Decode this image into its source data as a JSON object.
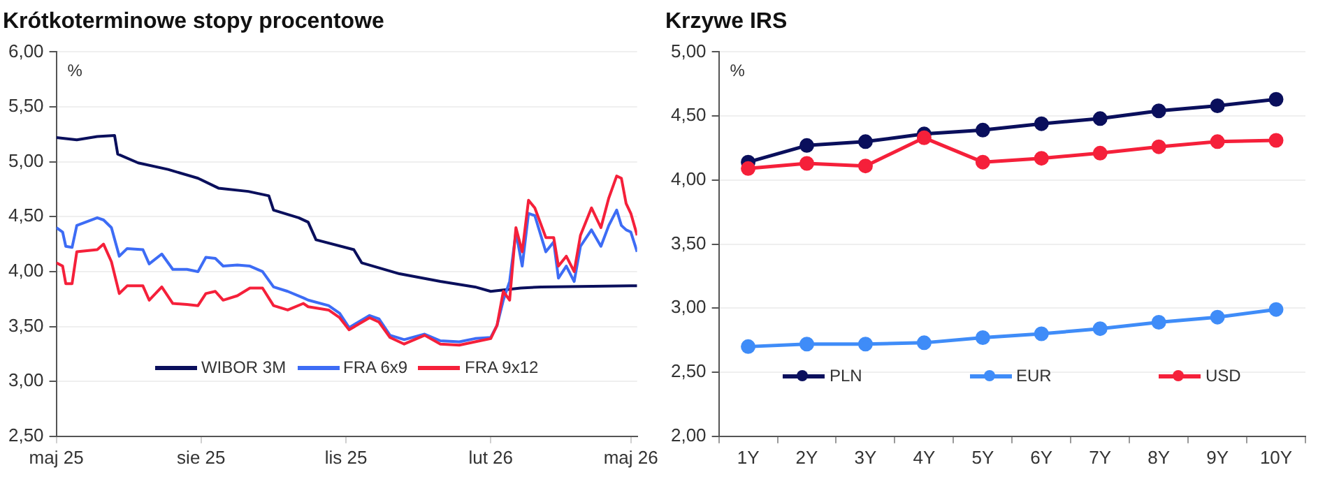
{
  "chart_data": [
    {
      "type": "line",
      "title": "Krótkoterminowe stopy procentowe",
      "ylabel": "%",
      "legend": "bottom",
      "grid": "y",
      "marker": "none",
      "xlim": [
        "2025-05-01",
        "2026-05-05"
      ],
      "xticks": [
        {
          "value": "2025-05-01",
          "label": "maj 25"
        },
        {
          "value": "2025-08-01",
          "label": "sie 25"
        },
        {
          "value": "2025-11-01",
          "label": "lis 25"
        },
        {
          "value": "2026-02-01",
          "label": "lut 26"
        },
        {
          "value": "2026-05-01",
          "label": "maj 26"
        }
      ],
      "ylim": [
        2.5,
        6
      ],
      "yticks": [
        {
          "value": 2.5,
          "label": "2,50"
        },
        {
          "value": 3,
          "label": "3,00"
        },
        {
          "value": 3.5,
          "label": "3,50"
        },
        {
          "value": 4,
          "label": "4,00"
        },
        {
          "value": 4.5,
          "label": "4,50"
        },
        {
          "value": 5,
          "label": "5,00"
        },
        {
          "value": 5.5,
          "label": "5,50"
        },
        {
          "value": 6,
          "label": "6,00"
        }
      ],
      "series": [
        {
          "name": "WIBOR 3M",
          "color": "#0a0f5c",
          "x": [
            "2025-05-01",
            "2025-05-14",
            "2025-05-27",
            "2025-06-07",
            "2025-06-09",
            "2025-06-22",
            "2025-07-11",
            "2025-07-30",
            "2025-08-12",
            "2025-08-31",
            "2025-09-13",
            "2025-09-16",
            "2025-10-02",
            "2025-10-08",
            "2025-10-13",
            "2025-11-06",
            "2025-11-11",
            "2025-12-05",
            "2025-12-31",
            "2026-01-22",
            "2026-02-01",
            "2026-02-20",
            "2026-03-05",
            "2026-05-01",
            "2026-05-05"
          ],
          "values": [
            5.22,
            5.2,
            5.23,
            5.24,
            5.07,
            4.99,
            4.93,
            4.85,
            4.76,
            4.73,
            4.69,
            4.56,
            4.49,
            4.45,
            4.29,
            4.2,
            4.08,
            3.98,
            3.91,
            3.86,
            3.82,
            3.85,
            3.86,
            3.87,
            3.87
          ]
        },
        {
          "name": "FRA 6x9",
          "color": "#3d6cf5",
          "x": [
            "2025-05-01",
            "2025-05-05",
            "2025-05-07",
            "2025-05-11",
            "2025-05-14",
            "2025-05-27",
            "2025-05-31",
            "2025-06-05",
            "2025-06-10",
            "2025-06-15",
            "2025-06-25",
            "2025-06-29",
            "2025-07-07",
            "2025-07-14",
            "2025-07-23",
            "2025-07-30",
            "2025-08-04",
            "2025-08-10",
            "2025-08-15",
            "2025-08-24",
            "2025-09-01",
            "2025-09-09",
            "2025-09-16",
            "2025-09-25",
            "2025-10-05",
            "2025-10-08",
            "2025-10-21",
            "2025-10-28",
            "2025-11-03",
            "2025-11-16",
            "2025-11-22",
            "2025-11-29",
            "2025-12-08",
            "2025-12-21",
            "2025-12-31",
            "2026-01-12",
            "2026-01-22",
            "2026-02-01",
            "2026-02-05",
            "2026-02-09",
            "2026-02-13",
            "2026-02-17",
            "2026-02-21",
            "2026-02-25",
            "2026-03-01",
            "2026-03-08",
            "2026-03-13",
            "2026-03-16",
            "2026-03-21",
            "2026-03-26",
            "2026-03-30",
            "2026-04-06",
            "2026-04-12",
            "2026-04-17",
            "2026-04-22",
            "2026-04-25",
            "2026-04-28",
            "2026-05-01",
            "2026-05-05"
          ],
          "values": [
            4.4,
            4.36,
            4.23,
            4.22,
            4.42,
            4.49,
            4.47,
            4.4,
            4.14,
            4.21,
            4.2,
            4.07,
            4.16,
            4.02,
            4.02,
            4.0,
            4.13,
            4.12,
            4.05,
            4.06,
            4.05,
            4.0,
            3.86,
            3.82,
            3.76,
            3.74,
            3.69,
            3.62,
            3.49,
            3.6,
            3.57,
            3.42,
            3.38,
            3.43,
            3.37,
            3.36,
            3.39,
            3.4,
            3.51,
            3.74,
            3.91,
            4.36,
            4.05,
            4.53,
            4.51,
            4.18,
            4.27,
            3.94,
            4.05,
            3.91,
            4.23,
            4.38,
            4.23,
            4.42,
            4.56,
            4.42,
            4.38,
            4.36,
            4.18
          ]
        },
        {
          "name": "FRA 9x12",
          "color": "#f5203a",
          "x": [
            "2025-05-01",
            "2025-05-05",
            "2025-05-07",
            "2025-05-11",
            "2025-05-14",
            "2025-05-27",
            "2025-05-31",
            "2025-06-05",
            "2025-06-10",
            "2025-06-15",
            "2025-06-25",
            "2025-06-29",
            "2025-07-07",
            "2025-07-14",
            "2025-07-23",
            "2025-07-30",
            "2025-08-04",
            "2025-08-10",
            "2025-08-15",
            "2025-08-24",
            "2025-09-01",
            "2025-09-09",
            "2025-09-16",
            "2025-09-25",
            "2025-10-05",
            "2025-10-08",
            "2025-10-21",
            "2025-10-28",
            "2025-11-03",
            "2025-11-16",
            "2025-11-22",
            "2025-11-29",
            "2025-12-08",
            "2025-12-21",
            "2025-12-31",
            "2026-01-12",
            "2026-01-22",
            "2026-02-01",
            "2026-02-05",
            "2026-02-09",
            "2026-02-13",
            "2026-02-17",
            "2026-02-21",
            "2026-02-25",
            "2026-03-01",
            "2026-03-08",
            "2026-03-13",
            "2026-03-16",
            "2026-03-21",
            "2026-03-26",
            "2026-03-30",
            "2026-04-06",
            "2026-04-12",
            "2026-04-17",
            "2026-04-22",
            "2026-04-25",
            "2026-04-28",
            "2026-05-01",
            "2026-05-05"
          ],
          "values": [
            4.08,
            4.05,
            3.89,
            3.89,
            4.18,
            4.2,
            4.25,
            4.09,
            3.8,
            3.87,
            3.87,
            3.74,
            3.86,
            3.71,
            3.7,
            3.69,
            3.8,
            3.82,
            3.74,
            3.78,
            3.85,
            3.85,
            3.69,
            3.65,
            3.71,
            3.68,
            3.65,
            3.58,
            3.47,
            3.58,
            3.54,
            3.4,
            3.34,
            3.42,
            3.34,
            3.33,
            3.36,
            3.39,
            3.51,
            3.82,
            3.74,
            4.4,
            4.18,
            4.65,
            4.58,
            4.31,
            4.31,
            4.05,
            4.14,
            4.0,
            4.33,
            4.58,
            4.4,
            4.67,
            4.87,
            4.85,
            4.62,
            4.53,
            4.33
          ]
        }
      ]
    },
    {
      "type": "line",
      "title": "Krzywe IRS",
      "ylabel": "%",
      "legend": "bottom",
      "grid": "y",
      "marker": "circle",
      "categories": [
        "1Y",
        "2Y",
        "3Y",
        "4Y",
        "5Y",
        "6Y",
        "7Y",
        "8Y",
        "9Y",
        "10Y"
      ],
      "ylim": [
        2,
        5
      ],
      "yticks": [
        {
          "value": 2,
          "label": "2,00"
        },
        {
          "value": 2.5,
          "label": "2,50"
        },
        {
          "value": 3,
          "label": "3,00"
        },
        {
          "value": 3.5,
          "label": "3,50"
        },
        {
          "value": 4,
          "label": "4,00"
        },
        {
          "value": 4.5,
          "label": "4,50"
        },
        {
          "value": 5,
          "label": "5,00"
        }
      ],
      "series": [
        {
          "name": "PLN",
          "color": "#0a0f5c",
          "values": [
            4.14,
            4.27,
            4.3,
            4.36,
            4.39,
            4.44,
            4.48,
            4.54,
            4.58,
            4.63
          ]
        },
        {
          "name": "EUR",
          "color": "#3f8cf8",
          "values": [
            2.7,
            2.72,
            2.72,
            2.73,
            2.77,
            2.8,
            2.84,
            2.89,
            2.93,
            2.99
          ]
        },
        {
          "name": "USD",
          "color": "#f5203a",
          "values": [
            4.09,
            4.13,
            4.11,
            4.33,
            4.14,
            4.17,
            4.21,
            4.26,
            4.3,
            4.31
          ]
        }
      ]
    }
  ]
}
